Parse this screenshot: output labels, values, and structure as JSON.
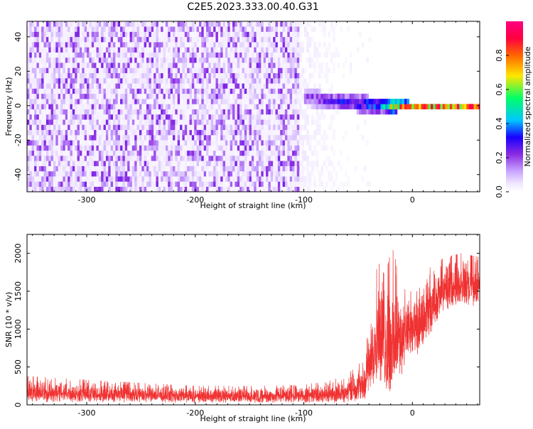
{
  "page": {
    "title": "C2E5.2023.333.00.40.G31"
  },
  "chart_data": [
    {
      "type": "heatmap",
      "title": "C2E5.2023.333.00.40.G31",
      "xlabel": "Height of straight line (km)",
      "ylabel": "Frequency (Hz)",
      "xlim": [
        -355,
        62
      ],
      "ylim": [
        -50,
        49
      ],
      "x_ticks": [
        -300,
        -200,
        -100,
        0
      ],
      "x_tick_labels": [
        "-300",
        "-200",
        "-100",
        "0"
      ],
      "y_ticks": [
        -40,
        -20,
        0,
        20,
        40
      ],
      "y_tick_labels": [
        "-40",
        "-20",
        "0",
        "20",
        "40"
      ],
      "grid": false,
      "colorbar": {
        "label": "Normalized spectral amplitude",
        "range": [
          0.0,
          1.0
        ],
        "ticks": [
          0.0,
          0.2,
          0.4,
          0.6,
          0.8
        ],
        "tick_labels": [
          "0.0",
          "0.2",
          "0.4",
          "0.6",
          "0.8"
        ],
        "colormap": [
          "#ffffff",
          "#f0e6ff",
          "#c9a6ff",
          "#8a2be2",
          "#1a00ff",
          "#00c8ff",
          "#00ff66",
          "#ffe600",
          "#ff6600",
          "#ff0040",
          "#ff0080"
        ]
      },
      "regions": [
        {
          "x": [
            -355,
            -105
          ],
          "freq_range": [
            -50,
            49
          ],
          "amplitude": 0.1,
          "pattern": "broadband noise"
        },
        {
          "x": [
            -105,
            -60
          ],
          "freq_range": [
            -50,
            49
          ],
          "amplitude": 0.03,
          "pattern": "fading noise"
        },
        {
          "x": [
            -105,
            62
          ],
          "freq_center": 0,
          "amplitude": 0.7,
          "pattern": "narrow tone near 0 Hz"
        }
      ],
      "tone_track": [
        {
          "x": -100,
          "freq": 5,
          "width": 5,
          "amplitude": 0.3
        },
        {
          "x": -80,
          "freq": 3,
          "width": 5,
          "amplitude": 0.35
        },
        {
          "x": -60,
          "freq": 2,
          "width": 5,
          "amplitude": 0.4
        },
        {
          "x": -45,
          "freq": 1,
          "width": 5,
          "amplitude": 0.45
        },
        {
          "x": -30,
          "freq": 0,
          "width": 4,
          "amplitude": 0.5
        },
        {
          "x": -20,
          "freq": 0,
          "width": 4,
          "amplitude": 0.75
        },
        {
          "x": -10,
          "freq": 0,
          "width": 3,
          "amplitude": 0.85
        },
        {
          "x": 0,
          "freq": 0,
          "width": 2,
          "amplitude": 0.95
        },
        {
          "x": 20,
          "freq": 0,
          "width": 2,
          "amplitude": 0.95
        },
        {
          "x": 40,
          "freq": 0,
          "width": 2,
          "amplitude": 0.95
        },
        {
          "x": 60,
          "freq": 0,
          "width": 2,
          "amplitude": 0.95
        }
      ]
    },
    {
      "type": "line",
      "xlabel": "Height of straight line (km)",
      "ylabel": "SNR (10 * v/v)",
      "xlim": [
        -355,
        62
      ],
      "ylim": [
        0,
        2250
      ],
      "x_ticks": [
        -300,
        -200,
        -100,
        0
      ],
      "x_tick_labels": [
        "-300",
        "-200",
        "-100",
        "0"
      ],
      "y_ticks": [
        0,
        500,
        1000,
        1500,
        2000
      ],
      "y_tick_labels": [
        "0",
        "500",
        "1000",
        "1500",
        "2000"
      ],
      "grid": false,
      "line_color": "#f03232",
      "envelope": [
        {
          "x": -355,
          "low": 30,
          "high": 380
        },
        {
          "x": -300,
          "low": 30,
          "high": 330
        },
        {
          "x": -250,
          "low": 30,
          "high": 290
        },
        {
          "x": -200,
          "low": 25,
          "high": 250
        },
        {
          "x": -150,
          "low": 25,
          "high": 250
        },
        {
          "x": -110,
          "low": 25,
          "high": 260
        },
        {
          "x": -80,
          "low": 25,
          "high": 300
        },
        {
          "x": -60,
          "low": 30,
          "high": 400
        },
        {
          "x": -45,
          "low": 60,
          "high": 600
        },
        {
          "x": -38,
          "low": 150,
          "high": 1200
        },
        {
          "x": -32,
          "low": 350,
          "high": 1900
        },
        {
          "x": -25,
          "low": 100,
          "high": 1700
        },
        {
          "x": -18,
          "low": 20,
          "high": 2150
        },
        {
          "x": -12,
          "low": 300,
          "high": 1600
        },
        {
          "x": -5,
          "low": 600,
          "high": 1500
        },
        {
          "x": 5,
          "low": 600,
          "high": 1500
        },
        {
          "x": 15,
          "low": 900,
          "high": 1800
        },
        {
          "x": 30,
          "low": 1250,
          "high": 1950
        },
        {
          "x": 45,
          "low": 1300,
          "high": 2000
        },
        {
          "x": 62,
          "low": 1300,
          "high": 1950
        }
      ]
    }
  ]
}
